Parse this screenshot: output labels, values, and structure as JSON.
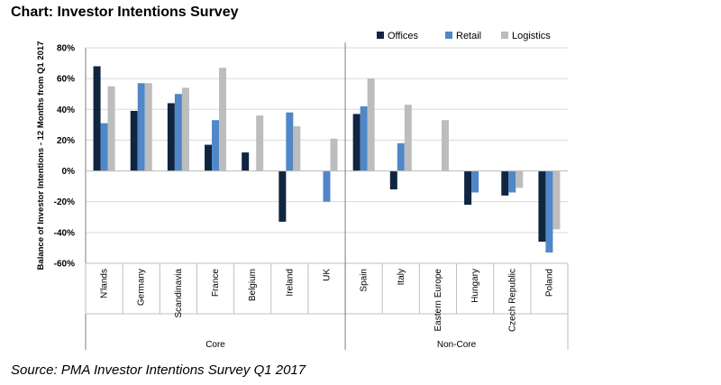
{
  "title": "Chart: Investor Intentions Survey",
  "source": "Source: PMA Investor Intentions Survey Q1 2017",
  "chart_data": {
    "type": "bar",
    "ylabel": "Balance of Investor Intentions - 12 Months from Q1 2017",
    "xlabel": "",
    "ylim": [
      -60,
      80
    ],
    "yticks": [
      80,
      60,
      40,
      20,
      0,
      -20,
      -40,
      -60
    ],
    "ytick_labels": [
      "80%",
      "60%",
      "40%",
      "20%",
      "0%",
      "-20%",
      "-40%",
      "-60%"
    ],
    "grid": true,
    "legend_position": "top-right",
    "categories": [
      "N'lands",
      "Germany",
      "Scandinavia",
      "France",
      "Belgium",
      "Ireland",
      "UK",
      "Spain",
      "Italy",
      "Eastern Europe",
      "Hungary",
      "Czech Republic",
      "Poland"
    ],
    "groups": [
      {
        "label": "Core",
        "categories": [
          "N'lands",
          "Germany",
          "Scandinavia",
          "France",
          "Belgium",
          "Ireland",
          "UK"
        ]
      },
      {
        "label": "Non-Core",
        "categories": [
          "Spain",
          "Italy",
          "Eastern Europe",
          "Hungary",
          "Czech Republic",
          "Poland"
        ]
      }
    ],
    "series": [
      {
        "name": "Offices",
        "color": "#0f2540",
        "values": [
          68,
          39,
          44,
          17,
          12,
          -33,
          null,
          37,
          -12,
          null,
          -22,
          -16,
          -46
        ]
      },
      {
        "name": "Retail",
        "color": "#4f87c8",
        "values": [
          31,
          57,
          50,
          33,
          null,
          38,
          -20,
          42,
          18,
          null,
          -14,
          -14,
          -53
        ]
      },
      {
        "name": "Logistics",
        "color": "#bdbdbd",
        "values": [
          55,
          57,
          54,
          67,
          36,
          29,
          21,
          60,
          43,
          33,
          null,
          -11,
          -38
        ]
      }
    ]
  }
}
